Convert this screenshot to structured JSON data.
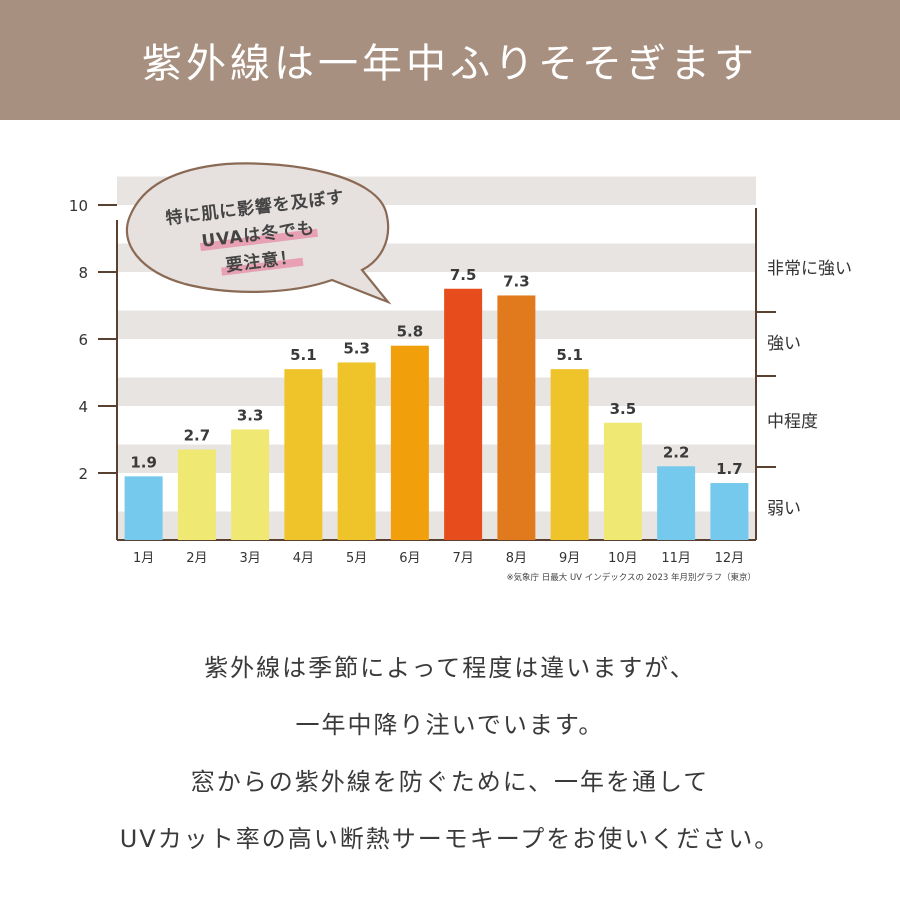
{
  "header": {
    "title": "紫外線は一年中ふりそそぎます",
    "background": "#a89080"
  },
  "speech_bubble": {
    "lines": [
      "特に肌に影響を及ぼす",
      "UVAは冬でも",
      "要注意！"
    ],
    "highlight_color": "#e7a0b4"
  },
  "chart_data": {
    "type": "bar",
    "categories": [
      "1月",
      "2月",
      "3月",
      "4月",
      "5月",
      "6月",
      "7月",
      "8月",
      "9月",
      "10月",
      "11月",
      "12月"
    ],
    "values": [
      1.9,
      2.7,
      3.3,
      5.1,
      5.3,
      5.8,
      7.5,
      7.3,
      5.1,
      3.5,
      2.2,
      1.7
    ],
    "data_labels": [
      "1.9",
      "2.7",
      "3.3",
      "5.1",
      "5.3",
      "5.8",
      "7.5",
      "7.3",
      "5.1",
      "3.5",
      "2.2",
      "1.7"
    ],
    "bar_colors": [
      "#74c9ec",
      "#efe873",
      "#efe873",
      "#efc32a",
      "#efc32a",
      "#f29f0c",
      "#e74c1d",
      "#e07a1d",
      "#efc32a",
      "#efe873",
      "#74c9ec",
      "#74c9ec"
    ],
    "yticks": [
      2,
      4,
      6,
      8,
      10
    ],
    "ylim": [
      0,
      10
    ],
    "grid": "horizontal bands",
    "right_axis_categories": [
      "非常に強い",
      "強い",
      "中程度",
      "弱い"
    ],
    "note": "※気象庁 日最大 UV インデックスの 2023 年月別グラフ（東京）"
  },
  "body": {
    "lines": [
      "紫外線は季節によって程度は違いますが、",
      "一年中降り注いでいます。",
      "窓からの紫外線を防ぐために、一年を通して",
      "UVカット率の高い断熱サーモキープをお使いください。"
    ]
  }
}
